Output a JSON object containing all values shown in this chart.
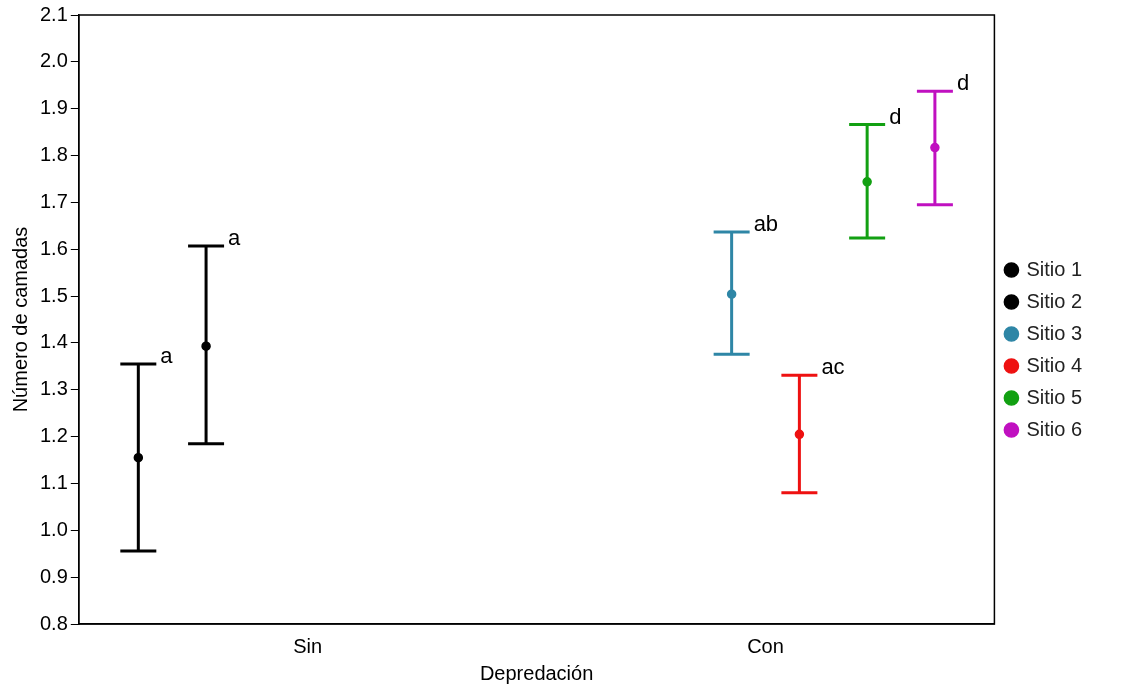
{
  "chart_data": {
    "type": "scatter",
    "xlabel": "Depredación",
    "ylabel": "Número de camadas",
    "categories": [
      "Sin",
      "Con"
    ],
    "ylim": [
      0.8,
      2.1
    ],
    "yticks": [
      0.8,
      0.9,
      {
        "value": 1,
        "label": "1.0"
      },
      1.1,
      1.2,
      1.3,
      1.4,
      1.5,
      1.6,
      1.7,
      1.8,
      1.9,
      {
        "value": 2,
        "label": "2.0"
      },
      2.1
    ],
    "legend": "right",
    "grid": false,
    "marker": "circle",
    "series": [
      {
        "name": "Sitio 1",
        "color": "#000000",
        "values": [
          1.155,
          null
        ],
        "errors": [
          [
            0.956,
            1.355
          ],
          null
        ]
      },
      {
        "name": "Sitio 2",
        "color": "#000000",
        "values": [
          1.393,
          null
        ],
        "errors": [
          [
            1.185,
            1.607
          ],
          null
        ]
      },
      {
        "name": "Sitio 3",
        "color": "#2e86a6",
        "values": [
          null,
          1.504
        ],
        "errors": [
          null,
          [
            1.376,
            1.637
          ]
        ]
      },
      {
        "name": "Sitio 4",
        "color": "#ee1111",
        "values": [
          null,
          1.205
        ],
        "errors": [
          null,
          [
            1.08,
            1.331
          ]
        ]
      },
      {
        "name": "Sitio 5",
        "color": "#12a012",
        "values": [
          null,
          1.744
        ],
        "errors": [
          null,
          [
            1.624,
            1.866
          ]
        ]
      },
      {
        "name": "Sitio 6",
        "color": "#c010c0",
        "values": [
          null,
          1.817
        ],
        "errors": [
          null,
          [
            1.695,
            1.937
          ]
        ]
      }
    ],
    "annotations": [
      "a",
      "a",
      "ab",
      "ac",
      "d",
      "d"
    ]
  }
}
